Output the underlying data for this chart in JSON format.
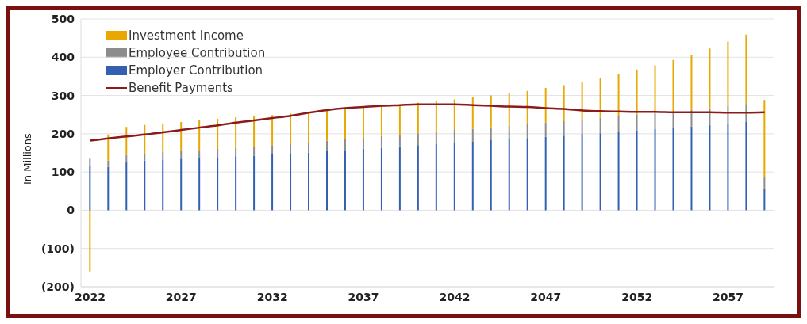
{
  "chart_data": {
    "type": "bar",
    "stacked": true,
    "ylabel": "In Millions",
    "categories": [
      "2022",
      null,
      null,
      null,
      null,
      "2027",
      null,
      null,
      null,
      null,
      "2032",
      null,
      null,
      null,
      null,
      "2037",
      null,
      null,
      null,
      null,
      "2042",
      null,
      null,
      null,
      null,
      "2047",
      null,
      null,
      null,
      null,
      "2052",
      null,
      null,
      null,
      null,
      "2057",
      null,
      null
    ],
    "series": [
      {
        "name": "Employer Contribution",
        "color": "#3560b0",
        "values": [
          118,
          113,
          127,
          130,
          133,
          135,
          137,
          139,
          141,
          143,
          146,
          148,
          151,
          155,
          158,
          161,
          163,
          167,
          170,
          173,
          176,
          179,
          183,
          186,
          189,
          192,
          195,
          199,
          201,
          205,
          208,
          212,
          216,
          219,
          223,
          227,
          231,
          57
        ]
      },
      {
        "name": "Employee Contribution",
        "color": "#8c8c8c",
        "values": [
          17,
          17,
          18,
          18,
          19,
          19,
          21,
          22,
          22,
          23,
          24,
          25,
          26,
          27,
          28,
          29,
          31,
          30,
          31,
          32,
          34,
          34,
          34,
          35,
          36,
          37,
          38,
          38,
          41,
          41,
          42,
          41,
          41,
          44,
          44,
          46,
          47,
          31
        ]
      },
      {
        "name": "Investment Income",
        "color": "#e8a800",
        "values": [
          -160,
          68,
          73,
          75,
          75,
          77,
          77,
          78,
          80,
          80,
          79,
          80,
          80,
          79,
          78,
          78,
          78,
          79,
          80,
          80,
          80,
          82,
          83,
          85,
          87,
          91,
          94,
          99,
          104,
          110,
          118,
          126,
          136,
          144,
          156,
          168,
          181,
          200
        ]
      },
      {
        "name": "Benefit Payments",
        "type": "line",
        "color": "#8b1a1a",
        "line_style": "solid",
        "marker": "none",
        "values": [
          182,
          188,
          193,
          198,
          204,
          210,
          216,
          222,
          229,
          235,
          241,
          247,
          255,
          262,
          267,
          270,
          273,
          275,
          277,
          277,
          277,
          275,
          273,
          271,
          270,
          267,
          265,
          261,
          259,
          258,
          257,
          257,
          256,
          256,
          256,
          255,
          255,
          256
        ]
      }
    ],
    "ylim": [
      -200,
      500
    ],
    "yticks": [
      {
        "value": -200,
        "label": "(200)"
      },
      {
        "value": -100,
        "label": "(100)"
      },
      0,
      100,
      200,
      300,
      400,
      500
    ],
    "grid": "y",
    "legend": "top left"
  }
}
